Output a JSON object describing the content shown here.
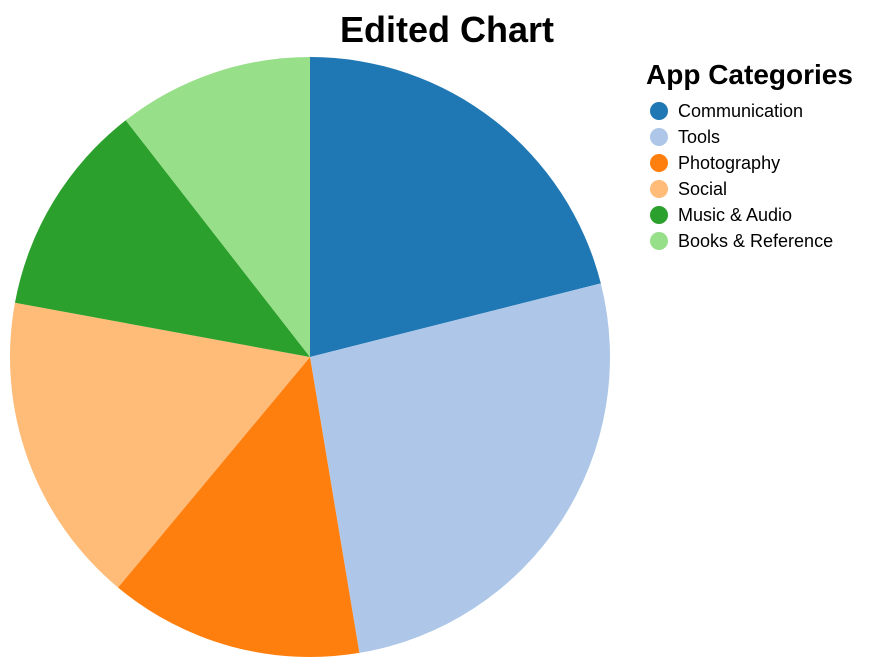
{
  "chart_data": {
    "type": "pie",
    "title": "Edited Chart",
    "legend": {
      "title": "App Categories",
      "placement": "top-right"
    },
    "categories": [
      "Communication",
      "Tools",
      "Photography",
      "Social",
      "Music & Audio",
      "Books & Reference"
    ],
    "values": [
      20,
      25,
      13,
      16,
      11,
      10
    ],
    "colors": [
      "#1f77b4",
      "#aec7e8",
      "#ff7f0e",
      "#ffbb78",
      "#2ca02c",
      "#98df8a"
    ]
  }
}
